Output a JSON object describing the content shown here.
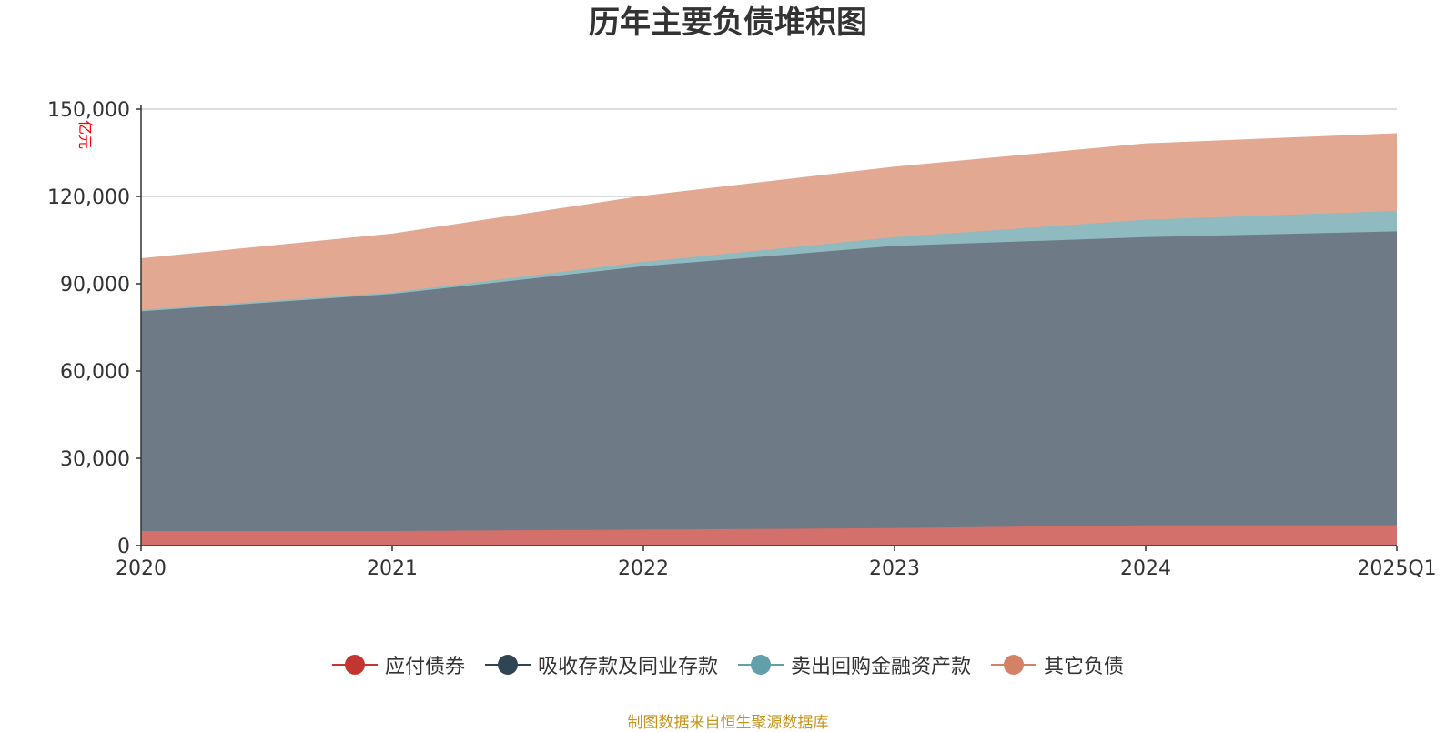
{
  "title": "历年主要负债堆积图",
  "source_note": "制图数据来自恒生聚源数据库",
  "chart_data": {
    "type": "area",
    "stacked": true,
    "title": "历年主要负债堆积图",
    "ylabel": "亿元",
    "xlabel": "",
    "categories": [
      "2020",
      "2021",
      "2022",
      "2023",
      "2024",
      "2025Q1"
    ],
    "ylim": [
      0,
      150000
    ],
    "yticks": [
      0,
      30000,
      60000,
      90000,
      120000,
      150000
    ],
    "ytick_labels": [
      "0",
      "30,000",
      "60,000",
      "90,000",
      "120,000",
      "150,000"
    ],
    "grid": true,
    "legend_position": "bottom",
    "series": [
      {
        "name": "应付债券",
        "color": "#c23531",
        "fill": "#d4706b",
        "values": [
          5000,
          5000,
          5500,
          6000,
          7000,
          7000
        ]
      },
      {
        "name": "吸收存款及同业存款",
        "color": "#2f4554",
        "fill": "#6e7b87",
        "values": [
          75500,
          81500,
          90500,
          97000,
          99000,
          101000
        ]
      },
      {
        "name": "卖出回购金融资产款",
        "color": "#61a0a8",
        "fill": "#8fbac0",
        "values": [
          500,
          500,
          1500,
          3000,
          6000,
          7000
        ]
      },
      {
        "name": "其它负债",
        "color": "#d48265",
        "fill": "#e2a892",
        "values": [
          17500,
          20000,
          22500,
          24000,
          26000,
          26500
        ]
      }
    ]
  }
}
